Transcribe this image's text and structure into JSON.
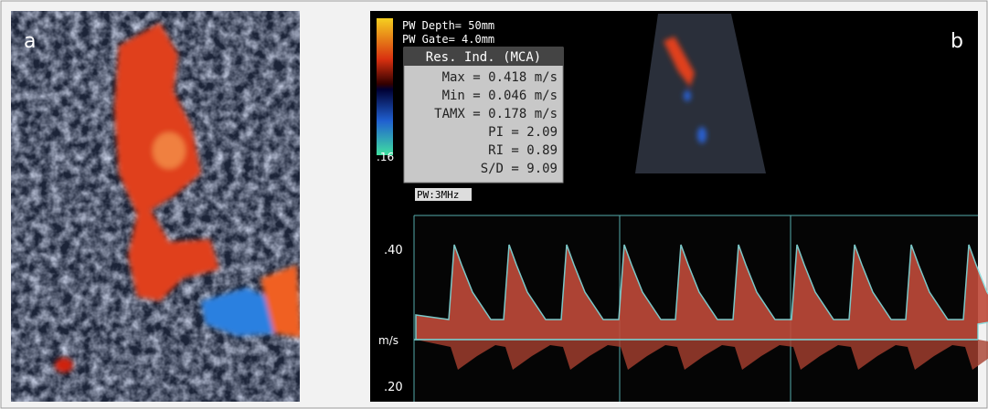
{
  "panels": {
    "a": {
      "label": "a"
    },
    "b": {
      "label": "b",
      "settings": [
        "PW Depth= 50mm",
        "PW Gate= 4.0mm"
      ],
      "color_scale_label": ".16",
      "measurements": {
        "title": "Res. Ind. (MCA)",
        "rows": [
          "Max = 0.418 m/s",
          "Min = 0.046 m/s",
          "TAMX = 0.178 m/s",
          "PI = 2.09",
          "RI = 0.89",
          "S/D = 9.09"
        ]
      },
      "probe": "PW:3MHz",
      "spectrum": {
        "upper_label": ".40",
        "unit_label": "m/s",
        "lower_label": ".20"
      }
    }
  }
}
